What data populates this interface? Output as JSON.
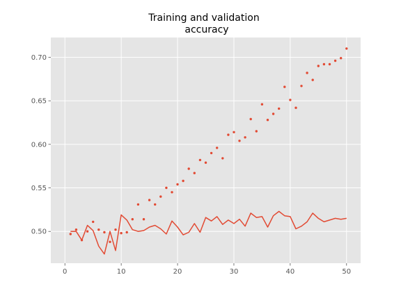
{
  "chart_data": {
    "type": "scatter",
    "title": [
      "Training and validation",
      "accuracy"
    ],
    "xlabel": "",
    "ylabel": "",
    "xlim": [
      -2.5,
      52.5
    ],
    "ylim": [
      0.4635,
      0.7227
    ],
    "grid": true,
    "legend": "none",
    "x_ticks": [
      0,
      10,
      20,
      30,
      40,
      50
    ],
    "y_ticks": [
      0.5,
      0.55,
      0.6,
      0.65,
      0.7
    ],
    "x_tick_labels": [
      "0",
      "10",
      "20",
      "30",
      "40",
      "50"
    ],
    "y_tick_labels": [
      "0.50",
      "0.55",
      "0.60",
      "0.65",
      "0.70"
    ],
    "colors": {
      "series": "#E24A33",
      "plot_bg": "#E5E5E5",
      "grid": "#FFFFFF"
    },
    "series": [
      {
        "style": "dots",
        "x": [
          1,
          2,
          3,
          4,
          5,
          6,
          7,
          8,
          9,
          10,
          11,
          12,
          13,
          14,
          15,
          16,
          17,
          18,
          19,
          20,
          21,
          22,
          23,
          24,
          25,
          26,
          27,
          28,
          29,
          30,
          31,
          32,
          33,
          34,
          35,
          36,
          37,
          38,
          39,
          40,
          41,
          42,
          43,
          44,
          45,
          46,
          47,
          48,
          49,
          50
        ],
        "values": [
          0.497,
          0.502,
          0.49,
          0.5,
          0.511,
          0.502,
          0.499,
          0.488,
          0.502,
          0.498,
          0.499,
          0.514,
          0.531,
          0.514,
          0.536,
          0.531,
          0.54,
          0.55,
          0.545,
          0.554,
          0.558,
          0.572,
          0.567,
          0.582,
          0.579,
          0.59,
          0.596,
          0.584,
          0.611,
          0.614,
          0.604,
          0.608,
          0.629,
          0.615,
          0.646,
          0.628,
          0.635,
          0.641,
          0.666,
          0.651,
          0.642,
          0.667,
          0.682,
          0.674,
          0.69,
          0.692,
          0.692,
          0.696,
          0.699,
          0.71
        ]
      },
      {
        "style": "line",
        "x": [
          1,
          2,
          3,
          4,
          5,
          6,
          7,
          8,
          9,
          10,
          11,
          12,
          13,
          14,
          15,
          16,
          17,
          18,
          19,
          20,
          21,
          22,
          23,
          24,
          25,
          26,
          27,
          28,
          29,
          30,
          31,
          32,
          33,
          34,
          35,
          36,
          37,
          38,
          39,
          40,
          41,
          42,
          43,
          44,
          45,
          46,
          47,
          48,
          49,
          50
        ],
        "values": [
          0.5,
          0.5,
          0.49,
          0.507,
          0.501,
          0.483,
          0.474,
          0.5,
          0.478,
          0.519,
          0.513,
          0.502,
          0.5,
          0.501,
          0.505,
          0.507,
          0.503,
          0.497,
          0.512,
          0.505,
          0.496,
          0.499,
          0.509,
          0.499,
          0.516,
          0.512,
          0.517,
          0.508,
          0.513,
          0.509,
          0.514,
          0.506,
          0.521,
          0.516,
          0.517,
          0.505,
          0.518,
          0.523,
          0.518,
          0.517,
          0.503,
          0.506,
          0.511,
          0.521,
          0.515,
          0.511,
          0.513,
          0.515,
          0.514,
          0.515
        ]
      }
    ]
  }
}
